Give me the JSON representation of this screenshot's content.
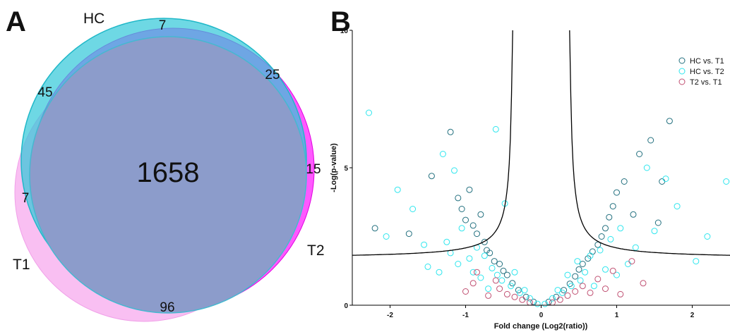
{
  "panel_a_label": "A",
  "panel_b_label": "B",
  "colors": {
    "hc": "#30c8d8",
    "t1": "#f8b4f0",
    "t2": "#ff00ff",
    "common": "#8c9ccb",
    "hc_vs_t1": "#23707f",
    "hc_vs_t2": "#2ee6ee",
    "t2_vs_t1": "#c05072",
    "threshold": "#000000"
  },
  "chart_data": [
    {
      "type": "venn",
      "sets": [
        "HC",
        "T1",
        "T2"
      ],
      "regions": [
        {
          "sets": [
            "HC",
            "T1",
            "T2"
          ],
          "value": "1658"
        },
        {
          "sets": [
            "HC"
          ],
          "value": "7"
        },
        {
          "sets": [
            "HC",
            "T2"
          ],
          "value": "25"
        },
        {
          "sets": [
            "HC",
            "T1"
          ],
          "value": "45"
        },
        {
          "sets": [
            "T2"
          ],
          "value": "15"
        },
        {
          "sets": [
            "T1"
          ],
          "value": "7"
        },
        {
          "sets": [
            "T1",
            "T2"
          ],
          "value": "96"
        }
      ]
    },
    {
      "type": "scatter",
      "xlabel": "Fold change (Log2(ratio))",
      "ylabel": "-Log(p-value)",
      "xlim": [
        -2.5,
        2.5
      ],
      "ylim": [
        0,
        10
      ],
      "x_ticks": [
        "-2",
        "-1",
        "0",
        "1",
        "2"
      ],
      "y_ticks": [
        "0",
        "5",
        "10"
      ],
      "legend_position": "top-right",
      "series": [
        {
          "name": "HC vs. T1",
          "points": [
            [
              -2.2,
              2.8
            ],
            [
              -1.75,
              2.6
            ],
            [
              -1.45,
              4.7
            ],
            [
              -1.2,
              6.3
            ],
            [
              -1.1,
              3.9
            ],
            [
              -1.05,
              3.5
            ],
            [
              -1.0,
              3.1
            ],
            [
              -0.95,
              4.2
            ],
            [
              -0.9,
              2.9
            ],
            [
              -0.85,
              2.6
            ],
            [
              -0.8,
              3.3
            ],
            [
              -0.75,
              2.3
            ],
            [
              -0.72,
              2.0
            ],
            [
              -0.68,
              1.9
            ],
            [
              -0.62,
              1.6
            ],
            [
              -0.55,
              1.5
            ],
            [
              -0.5,
              1.25
            ],
            [
              -0.45,
              1.1
            ],
            [
              -0.38,
              0.8
            ],
            [
              -0.3,
              0.55
            ],
            [
              -0.2,
              0.3
            ],
            [
              -0.1,
              0.12
            ],
            [
              0.1,
              0.12
            ],
            [
              0.2,
              0.3
            ],
            [
              0.3,
              0.55
            ],
            [
              0.38,
              0.78
            ],
            [
              0.45,
              1.05
            ],
            [
              0.5,
              1.3
            ],
            [
              0.55,
              1.5
            ],
            [
              0.62,
              1.7
            ],
            [
              0.68,
              1.95
            ],
            [
              0.75,
              2.2
            ],
            [
              0.8,
              2.5
            ],
            [
              0.85,
              2.8
            ],
            [
              0.9,
              3.2
            ],
            [
              0.95,
              3.6
            ],
            [
              1.0,
              4.1
            ],
            [
              1.1,
              4.5
            ],
            [
              1.22,
              3.3
            ],
            [
              1.3,
              5.5
            ],
            [
              1.45,
              6.0
            ],
            [
              1.55,
              3.0
            ],
            [
              1.6,
              4.5
            ],
            [
              1.7,
              6.7
            ]
          ]
        },
        {
          "name": "HC vs. T2",
          "points": [
            [
              -2.28,
              7.0
            ],
            [
              -2.05,
              2.5
            ],
            [
              -1.9,
              4.2
            ],
            [
              -1.7,
              3.5
            ],
            [
              -1.55,
              2.2
            ],
            [
              -1.5,
              1.4
            ],
            [
              -1.35,
              1.2
            ],
            [
              -1.3,
              5.5
            ],
            [
              -1.25,
              2.3
            ],
            [
              -1.2,
              1.9
            ],
            [
              -1.15,
              4.9
            ],
            [
              -1.1,
              1.5
            ],
            [
              -1.05,
              2.8
            ],
            [
              -0.95,
              1.7
            ],
            [
              -0.9,
              1.2
            ],
            [
              -0.85,
              2.1
            ],
            [
              -0.8,
              1.0
            ],
            [
              -0.75,
              1.8
            ],
            [
              -0.7,
              0.6
            ],
            [
              -0.65,
              1.35
            ],
            [
              -0.6,
              6.4
            ],
            [
              -0.58,
              1.1
            ],
            [
              -0.52,
              0.9
            ],
            [
              -0.48,
              3.7
            ],
            [
              -0.4,
              0.7
            ],
            [
              -0.35,
              1.2
            ],
            [
              -0.28,
              0.45
            ],
            [
              -0.22,
              0.55
            ],
            [
              -0.15,
              0.25
            ],
            [
              -0.05,
              0.05
            ],
            [
              0.05,
              0.05
            ],
            [
              0.15,
              0.25
            ],
            [
              0.22,
              0.55
            ],
            [
              0.28,
              0.45
            ],
            [
              0.35,
              1.1
            ],
            [
              0.4,
              0.7
            ],
            [
              0.48,
              1.6
            ],
            [
              0.52,
              0.9
            ],
            [
              0.58,
              1.2
            ],
            [
              0.65,
              1.8
            ],
            [
              0.7,
              0.7
            ],
            [
              0.78,
              2.0
            ],
            [
              0.85,
              1.3
            ],
            [
              0.92,
              2.4
            ],
            [
              1.0,
              1.1
            ],
            [
              1.05,
              2.8
            ],
            [
              1.15,
              1.5
            ],
            [
              1.25,
              2.1
            ],
            [
              1.4,
              5.0
            ],
            [
              1.5,
              2.7
            ],
            [
              1.65,
              4.6
            ],
            [
              1.8,
              3.6
            ],
            [
              2.05,
              1.6
            ],
            [
              2.2,
              2.5
            ],
            [
              2.45,
              4.5
            ]
          ]
        },
        {
          "name": "T2 vs. T1",
          "points": [
            [
              -1.0,
              0.5
            ],
            [
              -0.9,
              0.8
            ],
            [
              -0.85,
              1.2
            ],
            [
              -0.7,
              0.35
            ],
            [
              -0.6,
              0.9
            ],
            [
              -0.55,
              0.6
            ],
            [
              -0.45,
              0.4
            ],
            [
              -0.35,
              0.3
            ],
            [
              -0.25,
              0.2
            ],
            [
              -0.15,
              0.1
            ],
            [
              0.15,
              0.1
            ],
            [
              0.25,
              0.2
            ],
            [
              0.35,
              0.35
            ],
            [
              0.45,
              0.5
            ],
            [
              0.55,
              0.7
            ],
            [
              0.65,
              0.45
            ],
            [
              0.75,
              0.95
            ],
            [
              0.85,
              0.6
            ],
            [
              0.95,
              1.25
            ],
            [
              1.05,
              0.4
            ],
            [
              1.2,
              1.6
            ],
            [
              1.35,
              0.8
            ]
          ]
        }
      ]
    }
  ]
}
